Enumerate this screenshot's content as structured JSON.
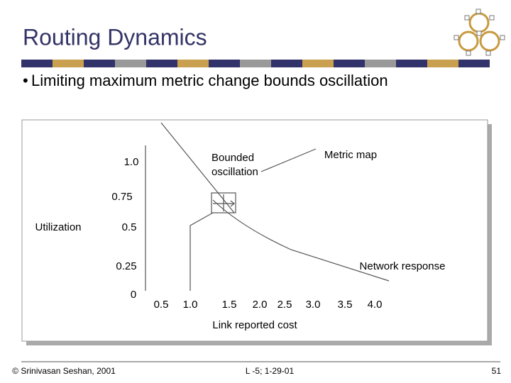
{
  "header": {
    "title": "Routing Dynamics"
  },
  "bullet": "Limiting maximum metric change bounds oscillation",
  "figure": {
    "y_axis_label": "Utilization",
    "y_labels": [
      "1.0",
      "0.75",
      "0.5",
      "0.25",
      "0"
    ],
    "x_labels": [
      "0.5",
      "1.0",
      "1.5",
      "2.0",
      "2.5",
      "3.0",
      "3.5",
      "4.0"
    ],
    "x_axis_label": "Link reported cost",
    "annotations": {
      "bounded": [
        "Bounded",
        "oscillation"
      ],
      "metric_map": "Metric map",
      "network_response": "Network response"
    }
  },
  "footer": {
    "left": "© Srinivasan Seshan, 2001",
    "center": "L -5; 1-29-01",
    "page": "51"
  }
}
